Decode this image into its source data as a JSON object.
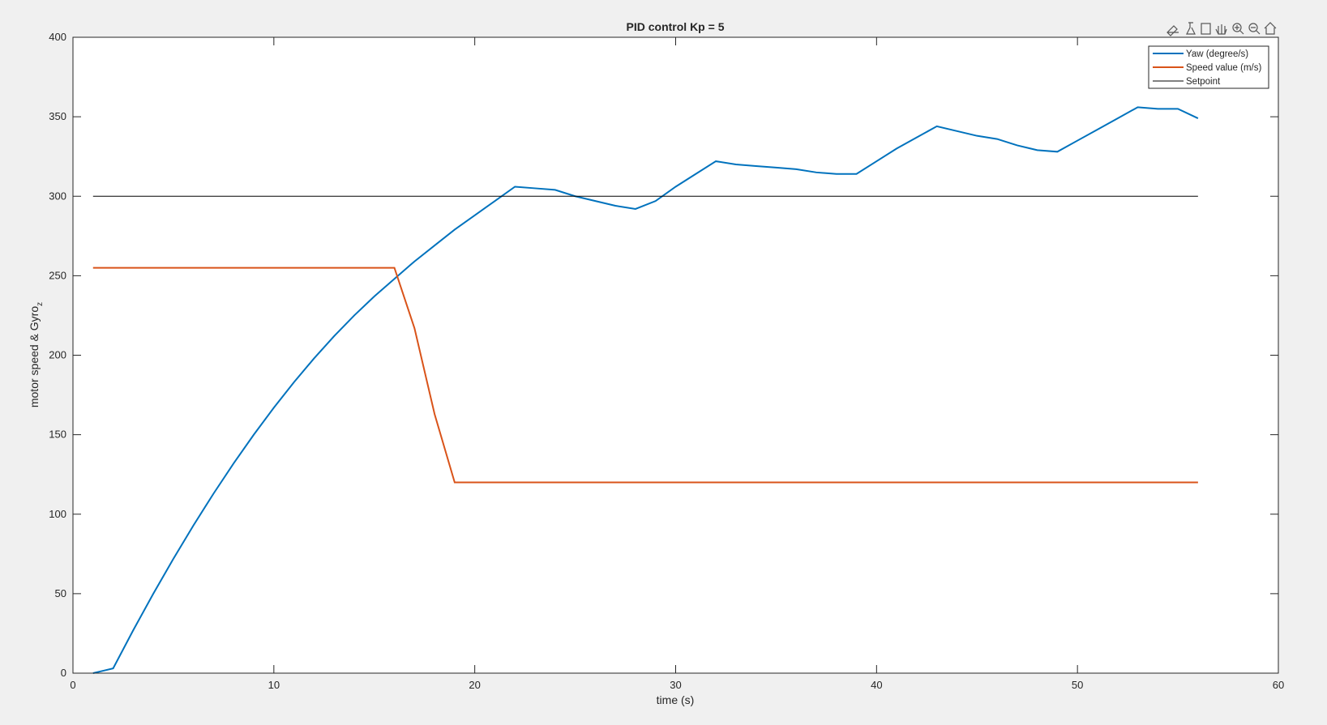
{
  "chart_data": {
    "type": "line",
    "title": "PID control Kp = 5",
    "xlabel": "time (s)",
    "ylabel": "motor speed & Gyro",
    "ylabel_subscript": "z",
    "x": [
      1,
      2,
      3,
      4,
      5,
      6,
      7,
      8,
      9,
      10,
      11,
      12,
      13,
      14,
      15,
      16,
      17,
      18,
      19,
      20,
      21,
      22,
      23,
      24,
      25,
      26,
      27,
      28,
      29,
      30,
      31,
      32,
      33,
      34,
      35,
      36,
      37,
      38,
      39,
      40,
      41,
      42,
      43,
      44,
      45,
      46,
      47,
      48,
      49,
      50,
      51,
      52,
      53,
      54,
      55,
      56
    ],
    "series": [
      {
        "name": "Yaw (degree/s)",
        "color": "#0072bd",
        "values": [
          0,
          3,
          27,
          50,
          72,
          93,
          113,
          132,
          150,
          167,
          183,
          198,
          212,
          225,
          237,
          248,
          259,
          269,
          279,
          288,
          297,
          306,
          305,
          304,
          300,
          297,
          294,
          292,
          297,
          306,
          314,
          322,
          320,
          319,
          318,
          317,
          315,
          314,
          314,
          322,
          330,
          337,
          344,
          341,
          338,
          336,
          332,
          329,
          328,
          335,
          342,
          349,
          356,
          355,
          355,
          349
        ]
      },
      {
        "name": "Speed value (m/s)",
        "color": "#d95319",
        "values": [
          255,
          255,
          255,
          255,
          255,
          255,
          255,
          255,
          255,
          255,
          255,
          255,
          255,
          255,
          255,
          255,
          217,
          163,
          120,
          120,
          120,
          120,
          120,
          120,
          120,
          120,
          120,
          120,
          120,
          120,
          120,
          120,
          120,
          120,
          120,
          120,
          120,
          120,
          120,
          120,
          120,
          120,
          120,
          120,
          120,
          120,
          120,
          120,
          120,
          120,
          120,
          120,
          120,
          120,
          120,
          120
        ]
      },
      {
        "name": "Setpoint",
        "color": "#000000",
        "values": [
          300,
          300,
          300,
          300,
          300,
          300,
          300,
          300,
          300,
          300,
          300,
          300,
          300,
          300,
          300,
          300,
          300,
          300,
          300,
          300,
          300,
          300,
          300,
          300,
          300,
          300,
          300,
          300,
          300,
          300,
          300,
          300,
          300,
          300,
          300,
          300,
          300,
          300,
          300,
          300,
          300,
          300,
          300,
          300,
          300,
          300,
          300,
          300,
          300,
          300,
          300,
          300,
          300,
          300,
          300,
          300
        ]
      }
    ],
    "xlim": [
      0,
      60
    ],
    "xticks": [
      0,
      10,
      20,
      30,
      40,
      50,
      60
    ],
    "ylim": [
      0,
      400
    ],
    "yticks": [
      0,
      50,
      100,
      150,
      200,
      250,
      300,
      350,
      400
    ],
    "grid": false,
    "legend": "top-right"
  }
}
